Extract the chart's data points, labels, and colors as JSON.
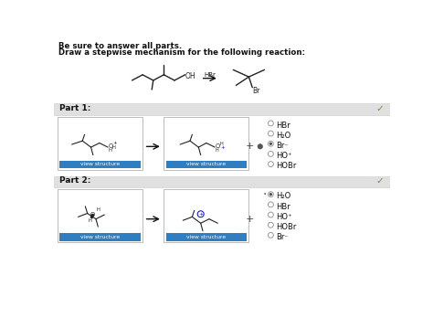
{
  "title_line1": "Be sure to answer all parts.",
  "title_line2": "Draw a stepwise mechanism for the following reaction:",
  "bg_color": "#ffffff",
  "header_bg": "#e0e0e0",
  "part1_label": "Part 1:",
  "part2_label": "Part 2:",
  "check_color": "#6b8c3a",
  "btn_color": "#2e7fc1",
  "btn_text": "view structure",
  "btn_text_color": "#ffffff",
  "radio_options_part1": [
    "HBr",
    "H₂O",
    "Br⁻",
    "HO⁺",
    "HOBr"
  ],
  "radio_options_part2": [
    "H₂O",
    "HBr",
    "HO⁺",
    "HOBr",
    "Br⁻"
  ],
  "selected_part1": 2,
  "selected_part2": 0,
  "plus_color": "#444444",
  "arrow_color": "#111111",
  "reagent_hbr": "HBr",
  "text_color": "#111111",
  "mol_color": "#222222",
  "structure_box_color": "#ffffff",
  "structure_box_border": "#bbbbbb",
  "header_border": "#cccccc"
}
